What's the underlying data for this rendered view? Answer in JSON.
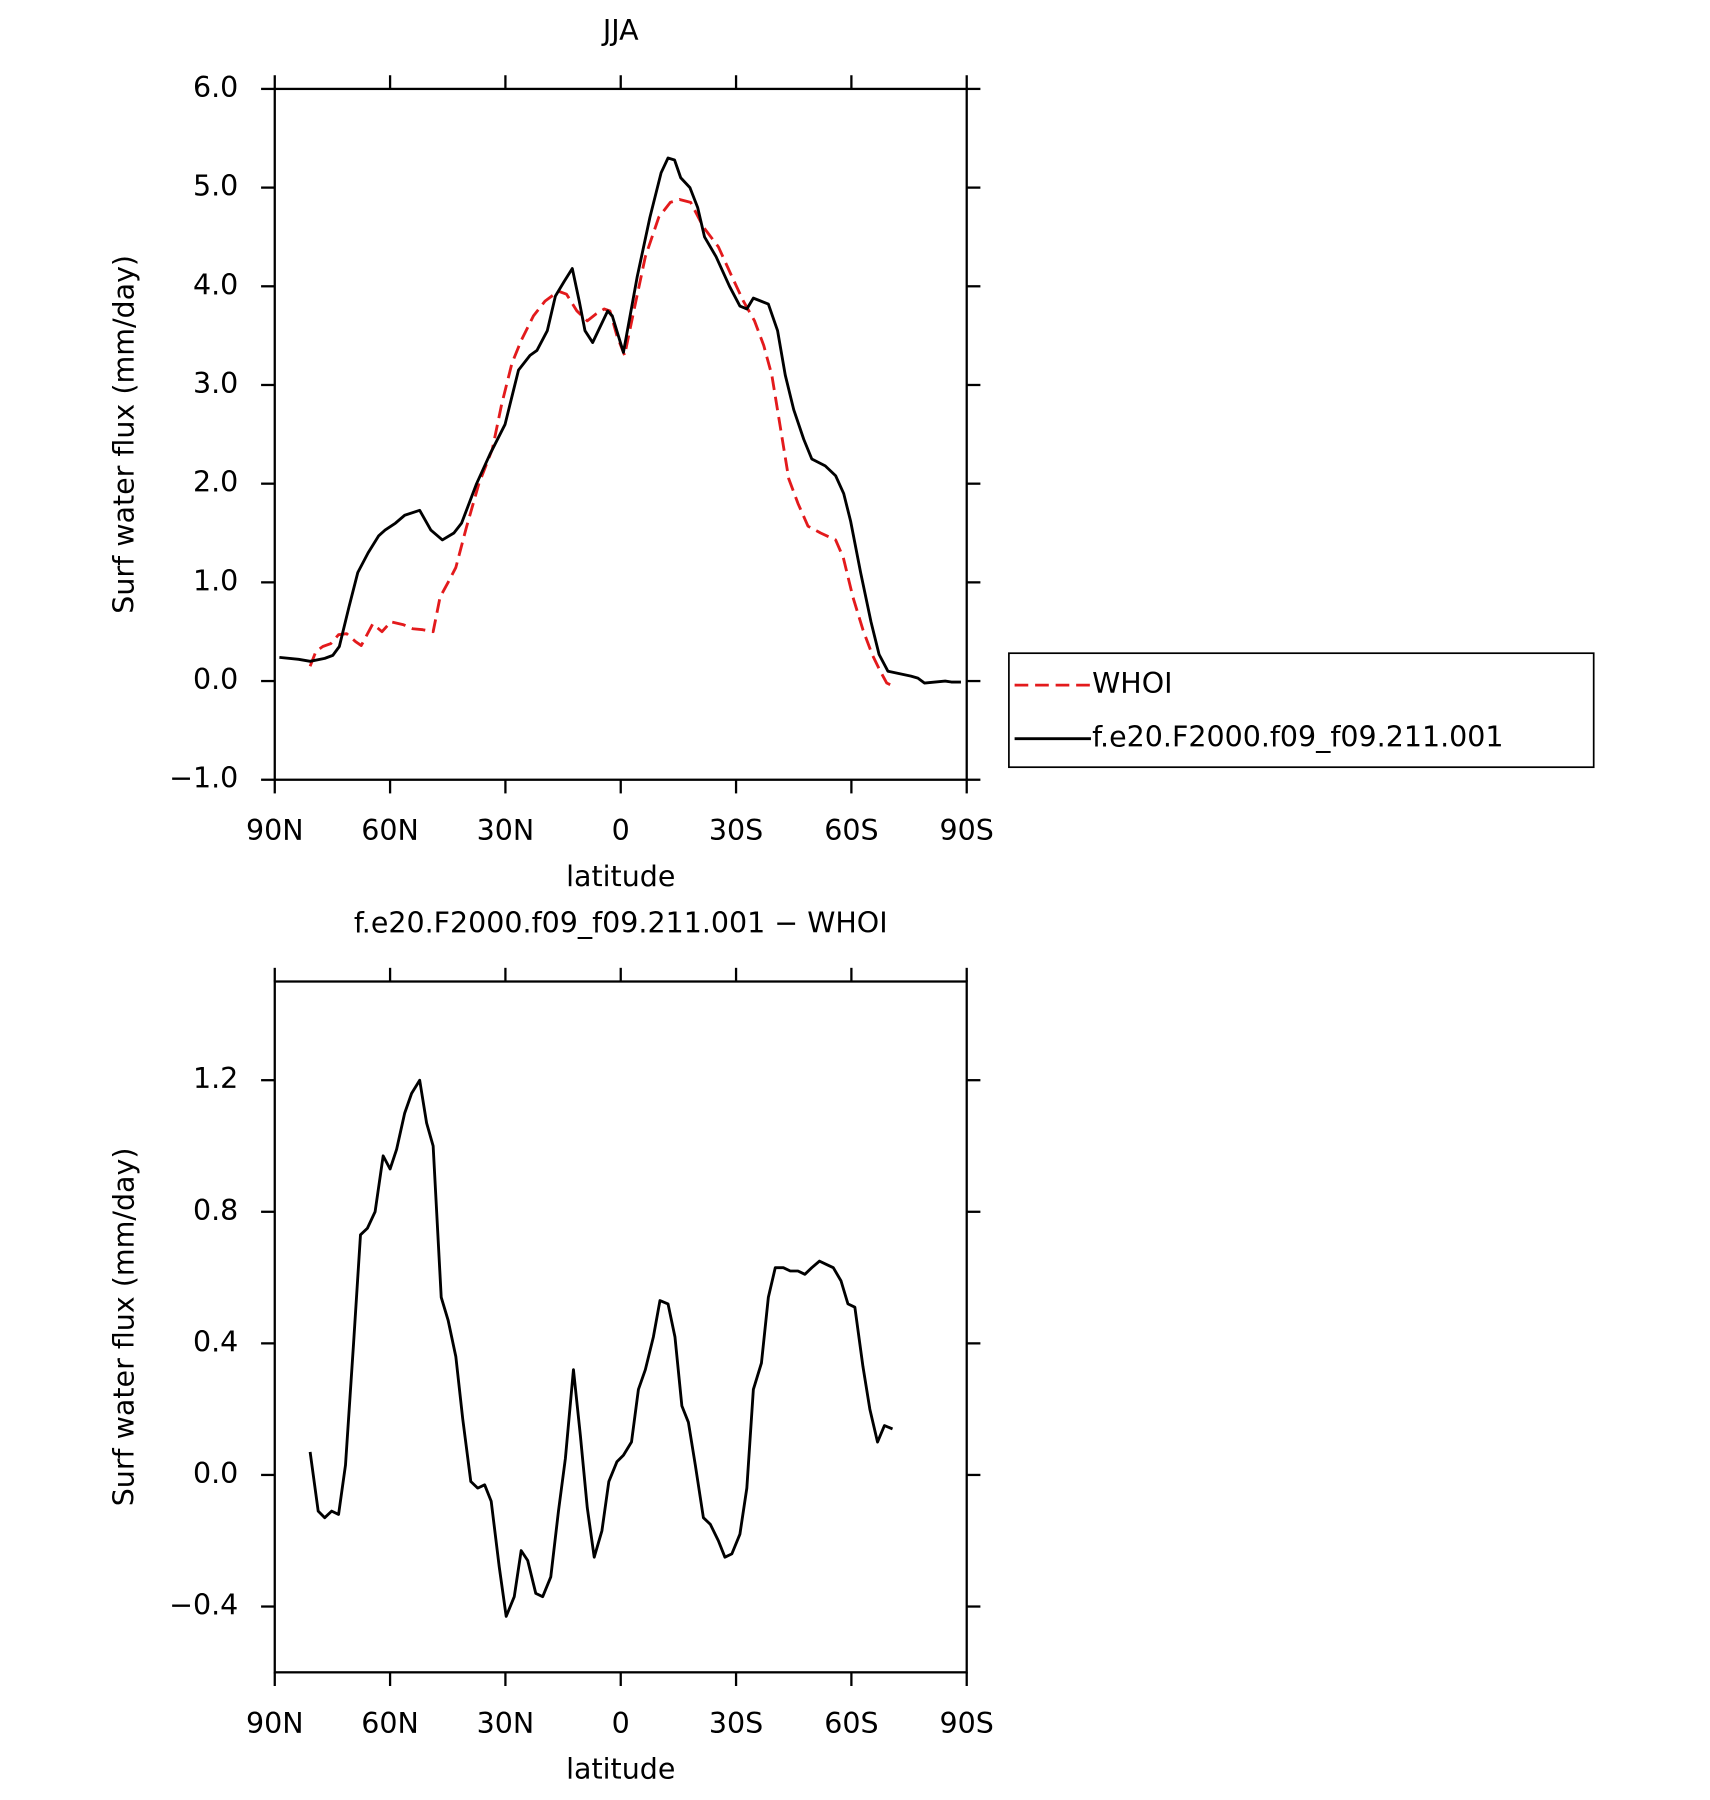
{
  "chart_data": [
    {
      "type": "line",
      "title": "JJA",
      "xlabel": "latitude",
      "ylabel": "Surf water flux (mm/day)",
      "xlim": [
        90,
        -90
      ],
      "xticks": [
        {
          "value": 90,
          "label": "90N"
        },
        {
          "value": 60,
          "label": "60N"
        },
        {
          "value": 30,
          "label": "30N"
        },
        0,
        {
          "value": -30,
          "label": "30S"
        },
        {
          "value": -60,
          "label": "60S"
        },
        {
          "value": -90,
          "label": "90S"
        }
      ],
      "ylim": [
        -1,
        6
      ],
      "yticks": [
        {
          "value": -1,
          "label": "−1.0"
        },
        {
          "value": 0,
          "label": "0.0"
        },
        {
          "value": 1,
          "label": "1.0"
        },
        {
          "value": 2,
          "label": "2.0"
        },
        {
          "value": 3,
          "label": "3.0"
        },
        {
          "value": 4,
          "label": "4.0"
        },
        {
          "value": 5,
          "label": "5.0"
        },
        {
          "value": 6,
          "label": "6.0"
        }
      ],
      "legend": "right",
      "series": [
        {
          "name": "WHOI",
          "color": "#e31a1c",
          "linestyle": "dashed",
          "x": [
            80.8,
            79.3,
            77.5,
            75.4,
            73.4,
            71.3,
            69,
            67.5,
            64.5,
            62.1,
            59.8,
            56.5,
            54.1,
            51.5,
            48.8,
            47,
            44.9,
            42.9,
            40.2,
            36.9,
            33.4,
            31,
            28.3,
            25.9,
            22.7,
            19.7,
            16.2,
            14.1,
            11.4,
            8.7,
            6.4,
            4.3,
            2.8,
            1,
            -1,
            -3.4,
            -6.4,
            -9.9,
            -12.9,
            -15.3,
            -18.2,
            -21.5,
            -25.4,
            -28.9,
            -31.9,
            -34.8,
            -37.2,
            -39.3,
            -41.4,
            -43.7,
            -46.1,
            -48.7,
            -52,
            -55.9,
            -57.9,
            -60.4,
            -63,
            -65.4,
            -67.5,
            -69.2,
            -71.3
          ],
          "values": [
            0.15,
            0.3,
            0.35,
            0.38,
            0.47,
            0.48,
            0.4,
            0.36,
            0.58,
            0.5,
            0.6,
            0.57,
            0.53,
            0.52,
            0.5,
            0.85,
            1.0,
            1.15,
            1.55,
            2.0,
            2.35,
            2.8,
            3.22,
            3.45,
            3.7,
            3.85,
            3.95,
            3.92,
            3.75,
            3.65,
            3.72,
            3.77,
            3.75,
            3.5,
            3.3,
            3.75,
            4.3,
            4.7,
            4.85,
            4.88,
            4.85,
            4.6,
            4.4,
            4.1,
            3.85,
            3.65,
            3.4,
            3.1,
            2.6,
            2.05,
            1.8,
            1.57,
            1.5,
            1.43,
            1.25,
            0.85,
            0.52,
            0.27,
            0.1,
            -0.02,
            -0.06
          ]
        },
        {
          "name": "f.e20.F2000.f09_f09.211.001",
          "color": "#000000",
          "linestyle": "solid",
          "x": [
            88.8,
            83.8,
            80.8,
            77,
            74.9,
            73.2,
            70.7,
            68.4,
            65.7,
            63,
            61.3,
            58.6,
            56.2,
            52.3,
            49.4,
            46.4,
            43.4,
            41.4,
            37.5,
            34,
            30.1,
            26.6,
            23.6,
            21.8,
            19.1,
            17,
            14.7,
            12.6,
            10.8,
            9.3,
            7.3,
            3.4,
            2.2,
            -0.7,
            -4.3,
            -7.6,
            -10.5,
            -12.3,
            -14,
            -15.6,
            -18,
            -20,
            -21.8,
            -24.8,
            -28.3,
            -31,
            -32.8,
            -34.5,
            -38.4,
            -40.8,
            -42.8,
            -45,
            -47.6,
            -49.7,
            -53.2,
            -55.9,
            -58,
            -59.8,
            -62.4,
            -65.1,
            -67.2,
            -69.5,
            -75.5,
            -77.3,
            -79,
            -84.4,
            -86,
            -88.5
          ],
          "values": [
            0.24,
            0.22,
            0.2,
            0.23,
            0.26,
            0.35,
            0.75,
            1.1,
            1.3,
            1.47,
            1.53,
            1.6,
            1.68,
            1.73,
            1.53,
            1.43,
            1.5,
            1.6,
            2.0,
            2.3,
            2.6,
            3.15,
            3.3,
            3.35,
            3.55,
            3.9,
            4.05,
            4.18,
            3.85,
            3.55,
            3.43,
            3.75,
            3.7,
            3.33,
            4.1,
            4.7,
            5.15,
            5.3,
            5.28,
            5.1,
            5.0,
            4.8,
            4.5,
            4.3,
            4.0,
            3.8,
            3.77,
            3.88,
            3.82,
            3.55,
            3.1,
            2.75,
            2.45,
            2.25,
            2.18,
            2.08,
            1.9,
            1.62,
            1.1,
            0.6,
            0.27,
            0.1,
            0.05,
            0.03,
            -0.02,
            0.0,
            -0.01,
            -0.01
          ]
        }
      ]
    },
    {
      "type": "line",
      "title": "f.e20.F2000.f09_f09.211.001 − WHOI",
      "xlabel": "latitude",
      "ylabel": "Surf water flux (mm/day)",
      "xlim": [
        90,
        -90
      ],
      "xticks": [
        {
          "value": 90,
          "label": "90N"
        },
        {
          "value": 60,
          "label": "60N"
        },
        {
          "value": 30,
          "label": "30N"
        },
        0,
        {
          "value": -30,
          "label": "30S"
        },
        {
          "value": -60,
          "label": "60S"
        },
        {
          "value": -90,
          "label": "90S"
        }
      ],
      "ylim": [
        -0.6,
        1.5
      ],
      "yticks": [
        {
          "value": -0.4,
          "label": "−0.4"
        },
        {
          "value": 0,
          "label": "0.0"
        },
        0.4,
        0.8,
        1.2
      ],
      "color": "#000000",
      "x": [
        80.8,
        78.7,
        77,
        75.2,
        73.4,
        71.6,
        69.5,
        67.7,
        65.9,
        63.9,
        61.8,
        60,
        58.3,
        56.2,
        54.4,
        52.3,
        50.5,
        48.8,
        46.7,
        44.9,
        42.9,
        41.1,
        39,
        37.2,
        35.4,
        33.7,
        31.6,
        29.8,
        27.7,
        25.9,
        24.2,
        22.1,
        20.3,
        18.2,
        16.2,
        14.4,
        12.3,
        10.5,
        8.7,
        6.9,
        4.9,
        3.1,
        1,
        -0.7,
        -2.8,
        -4.6,
        -6.4,
        -8.5,
        -10.2,
        -12.3,
        -14.1,
        -15.9,
        -17.6,
        -19.4,
        -21.5,
        -23.3,
        -25.4,
        -27.1,
        -28.9,
        -31,
        -32.8,
        -34.5,
        -36.6,
        -38.4,
        -40.2,
        -42.3,
        -44.1,
        -46.1,
        -47.9,
        -49.7,
        -51.7,
        -53.5,
        -55.3,
        -57.3,
        -59.1,
        -60.9,
        -63,
        -64.8,
        -66.8,
        -68.6,
        -70.7
      ],
      "values": [
        0.07,
        -0.11,
        -0.13,
        -0.11,
        -0.12,
        0.03,
        0.4,
        0.73,
        0.75,
        0.8,
        0.97,
        0.93,
        0.99,
        1.1,
        1.16,
        1.2,
        1.07,
        1.0,
        0.54,
        0.47,
        0.36,
        0.17,
        -0.02,
        -0.04,
        -0.03,
        -0.08,
        -0.28,
        -0.43,
        -0.37,
        -0.23,
        -0.26,
        -0.36,
        -0.37,
        -0.31,
        -0.11,
        0.05,
        0.32,
        0.12,
        -0.1,
        -0.25,
        -0.17,
        -0.02,
        0.04,
        0.06,
        0.1,
        0.26,
        0.32,
        0.42,
        0.53,
        0.52,
        0.42,
        0.21,
        0.16,
        0.03,
        -0.13,
        -0.15,
        -0.2,
        -0.25,
        -0.24,
        -0.18,
        -0.04,
        0.26,
        0.34,
        0.54,
        0.63,
        0.63,
        0.62,
        0.62,
        0.61,
        0.63,
        0.65,
        0.64,
        0.63,
        0.59,
        0.52,
        0.51,
        0.33,
        0.2,
        0.1,
        0.15,
        0.14
      ]
    }
  ]
}
